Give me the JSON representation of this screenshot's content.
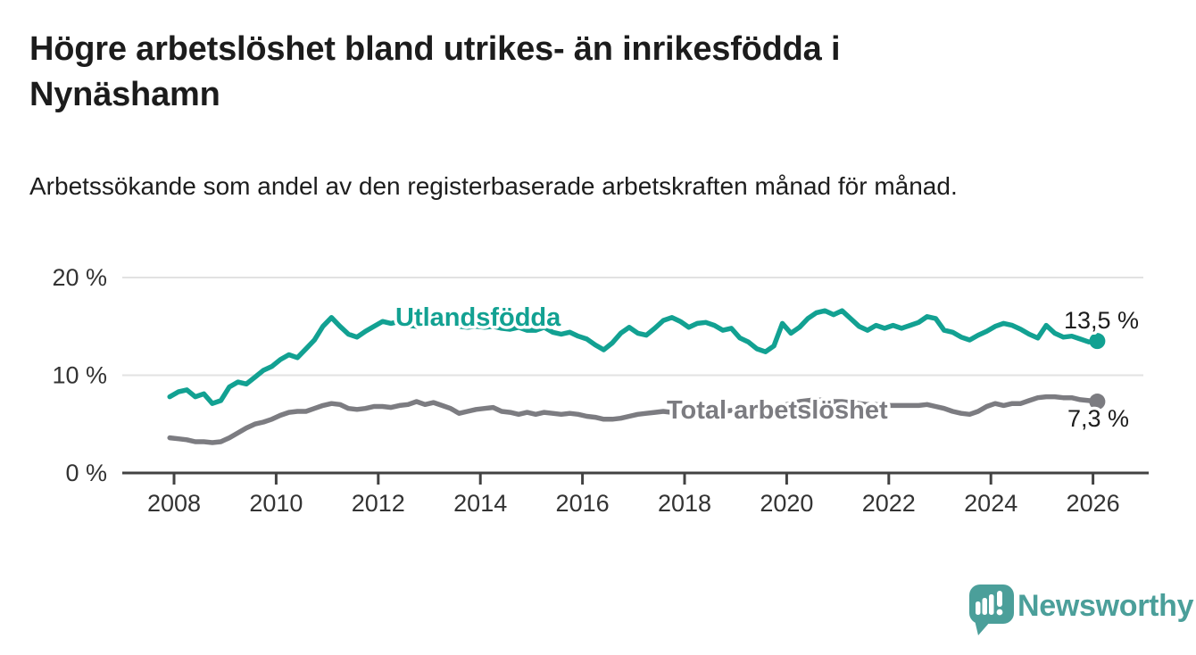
{
  "header": {
    "title": "Högre arbetslöshet bland utrikes- än inrikesfödda i Nynäshamn",
    "subtitle": "Arbetssökande som andel av den registerbaserade arbetskraften månad för månad."
  },
  "chart_data": {
    "type": "line",
    "title": "",
    "xlabel": "",
    "ylabel": "",
    "unit": "%",
    "grid": "horizontal",
    "x_start": 2007.9167,
    "x_step_years": 0.16667,
    "x_axis": {
      "range": [
        2007,
        2027.1
      ],
      "tick_values": [
        2008,
        2010,
        2012,
        2014,
        2016,
        2018,
        2020,
        2022,
        2024,
        2026
      ],
      "tick_labels": [
        "2008",
        "2010",
        "2012",
        "2014",
        "2016",
        "2018",
        "2020",
        "2022",
        "2024",
        "2026"
      ]
    },
    "y_axis": {
      "range": [
        0,
        21.5
      ],
      "tick_values": [
        0,
        10,
        20
      ],
      "tick_labels": [
        "0 %",
        "10 %",
        "20 %"
      ],
      "gridline_values": [
        10,
        20
      ]
    },
    "series": [
      {
        "name": "Utlandsfödda",
        "color": "#12a192",
        "end_label": "13,5 %",
        "end_dot": true,
        "values": [
          7.8,
          8.3,
          8.5,
          7.8,
          8.1,
          7.1,
          7.4,
          8.8,
          9.3,
          9.1,
          9.8,
          10.5,
          10.9,
          11.6,
          12.1,
          11.8,
          12.7,
          13.6,
          15.0,
          15.9,
          15.0,
          14.2,
          13.9,
          14.5,
          15.0,
          15.5,
          15.3,
          15.5,
          15.1,
          15.0,
          15.3,
          15.2,
          15.1,
          15.2,
          15.0,
          14.9,
          15.0,
          14.9,
          15.0,
          14.8,
          14.7,
          14.9,
          14.6,
          14.6,
          14.9,
          14.4,
          14.2,
          14.4,
          14.0,
          13.7,
          13.1,
          12.6,
          13.3,
          14.3,
          14.9,
          14.3,
          14.1,
          14.8,
          15.6,
          15.9,
          15.5,
          14.9,
          15.3,
          15.4,
          15.1,
          14.6,
          14.8,
          13.8,
          13.4,
          12.7,
          12.4,
          13.0,
          15.3,
          14.3,
          14.9,
          15.8,
          16.4,
          16.6,
          16.2,
          16.6,
          15.8,
          15.0,
          14.6,
          15.1,
          14.8,
          15.1,
          14.8,
          15.1,
          15.4,
          16.0,
          15.8,
          14.6,
          14.4,
          13.9,
          13.6,
          14.1,
          14.5,
          15.0,
          15.3,
          15.1,
          14.7,
          14.2,
          13.8,
          15.1,
          14.3,
          13.9,
          14.0,
          13.7,
          13.4,
          13.5
        ]
      },
      {
        "name": "Total arbetslöshet",
        "color": "#7c7c81",
        "end_label": "7,3 %",
        "end_dot": true,
        "values": [
          3.6,
          3.5,
          3.4,
          3.2,
          3.2,
          3.1,
          3.2,
          3.6,
          4.1,
          4.6,
          5.0,
          5.2,
          5.5,
          5.9,
          6.2,
          6.3,
          6.3,
          6.6,
          6.9,
          7.1,
          7.0,
          6.6,
          6.5,
          6.6,
          6.8,
          6.8,
          6.7,
          6.9,
          7.0,
          7.3,
          7.0,
          7.2,
          6.9,
          6.6,
          6.1,
          6.3,
          6.5,
          6.6,
          6.7,
          6.3,
          6.2,
          6.0,
          6.2,
          6.0,
          6.2,
          6.1,
          6.0,
          6.1,
          6.0,
          5.8,
          5.7,
          5.5,
          5.5,
          5.6,
          5.8,
          6.0,
          6.1,
          6.2,
          6.3,
          6.2,
          6.2,
          6.1,
          6.2,
          6.2,
          6.3,
          6.3,
          6.4,
          6.4,
          6.5,
          6.5,
          6.6,
          6.7,
          6.9,
          7.1,
          7.3,
          7.4,
          7.5,
          7.4,
          7.3,
          7.3,
          7.2,
          7.1,
          7.0,
          7.0,
          6.9,
          6.9,
          6.9,
          6.9,
          6.9,
          7.0,
          6.8,
          6.6,
          6.3,
          6.1,
          6.0,
          6.3,
          6.8,
          7.1,
          6.9,
          7.1,
          7.1,
          7.4,
          7.7,
          7.8,
          7.8,
          7.7,
          7.7,
          7.5,
          7.4,
          7.3
        ]
      }
    ]
  },
  "logo": {
    "wordmark": "Newsworthy",
    "color": "#4b9f9a"
  },
  "colors": {
    "axis": "#424242",
    "gridline": "#e2e2e2",
    "tick_text": "#333333",
    "value_label_text": "#1c1c1c",
    "background": "#ffffff"
  }
}
